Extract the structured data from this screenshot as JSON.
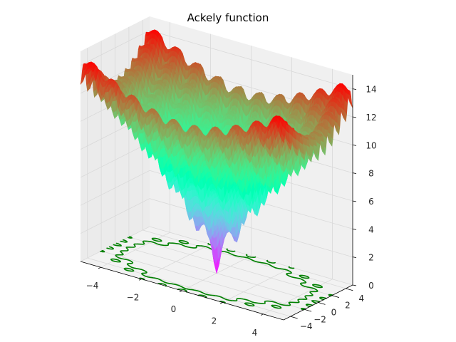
{
  "chart_data": {
    "type": "surface3d",
    "title": "Ackely function",
    "function": "ackley",
    "xlabel": "",
    "ylabel": "",
    "zlabel": "",
    "x_range": [
      -5,
      5
    ],
    "y_range": [
      -5,
      5
    ],
    "z_range": [
      0,
      15
    ],
    "x_ticks": [
      "−4",
      "−2",
      "0",
      "2",
      "4"
    ],
    "y_ticks": [
      "−4",
      "−2",
      "0",
      "2",
      "4"
    ],
    "z_ticks": [
      "0",
      "2",
      "4",
      "6",
      "8",
      "10",
      "12",
      "14"
    ],
    "z_min_value": 0,
    "z_max_value": 14.3,
    "colormap": "rainbow",
    "contour_offset_z": 0,
    "contour_color": "#008000",
    "grid": true,
    "pane_color": "#f2f2f2",
    "grid_color": "#d9d9d9"
  }
}
